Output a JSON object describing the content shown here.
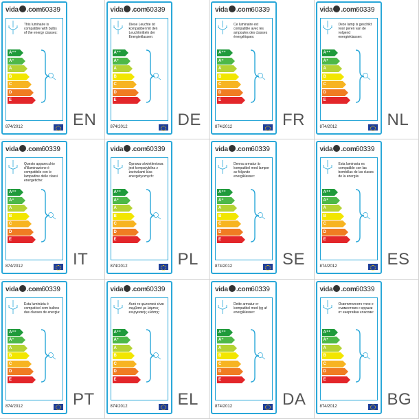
{
  "logo": "vida",
  "logo_suffix": ".com",
  "product_code": "60339",
  "regulation": "874/2012",
  "energy_classes": [
    {
      "label": "A⁺⁺",
      "color": "#1f9a3b"
    },
    {
      "label": "A⁺",
      "color": "#4db848"
    },
    {
      "label": "A",
      "color": "#b5d334"
    },
    {
      "label": "B",
      "color": "#f2e600"
    },
    {
      "label": "C",
      "color": "#f7b421"
    },
    {
      "label": "D",
      "color": "#f07c22"
    },
    {
      "label": "E",
      "color": "#e3262a"
    }
  ],
  "labels": [
    {
      "lang": "EN",
      "text": "This luminaire is compatible with bulbs of the energy classes:"
    },
    {
      "lang": "DE",
      "text": "Diese Leuchte ist kompatibel mit den Leuchtmitteln der Energieklassen:"
    },
    {
      "lang": "FR",
      "text": "Ce luminaire est compatible avec les ampoules des classes énergétiques:"
    },
    {
      "lang": "NL",
      "text": "Deze lamp is geschikt voor peren van de volgend energieklassen:"
    },
    {
      "lang": "IT",
      "text": "Questo apparecchio d'illuminazione è compatibile con le lampadine delle classi energetiche:"
    },
    {
      "lang": "PL",
      "text": "Oprawa oświetleniowa jest kompatybilna z żarówkami klas energetycznych:"
    },
    {
      "lang": "SE",
      "text": "Denna armatur är kompatibel med lampor av följande energiklasser:"
    },
    {
      "lang": "ES",
      "text": "Esta luminaria es compatible con las bombillas de las clases de la energía:"
    },
    {
      "lang": "PT",
      "text": "Esta luminária é compatível com bulbos das classes de energia:"
    },
    {
      "lang": "EL",
      "text": "Αυτό το φωτιστικό είναι συμβατό με λάμπες ενεργειακής κλάσης:"
    },
    {
      "lang": "DA",
      "text": "Dette armatur er kompatibel med lyg af energiklasser:"
    },
    {
      "lang": "BG",
      "text": "Осветителното тяло е съвместимо с крушки от енергийни класове:"
    }
  ]
}
